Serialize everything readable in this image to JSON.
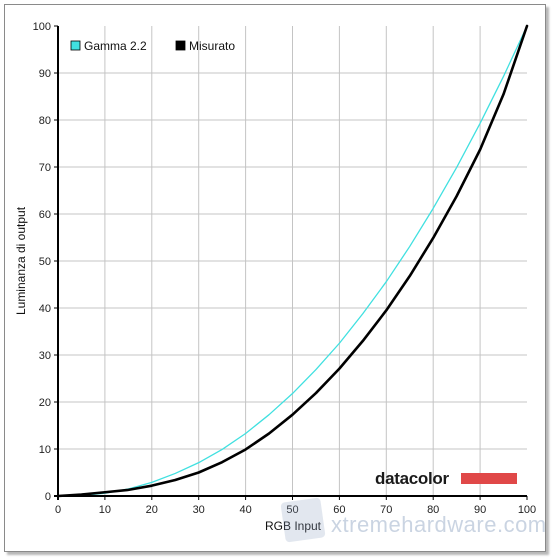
{
  "chart_data": {
    "type": "line",
    "xlabel": "RGB Input",
    "ylabel": "Luminanza di output",
    "xlim": [
      0,
      100
    ],
    "ylim": [
      0,
      100
    ],
    "x_ticks": [
      "0",
      "10",
      "20",
      "30",
      "40",
      "50",
      "60",
      "70",
      "80",
      "90",
      "100"
    ],
    "y_ticks": [
      "0",
      "10",
      "20",
      "30",
      "40",
      "50",
      "60",
      "70",
      "80",
      "90",
      "100"
    ],
    "grid": true,
    "legend_position": "top-left",
    "series": [
      {
        "name": "Gamma 2.2",
        "color": "#40e0e0",
        "x": [
          0,
          5,
          10,
          15,
          20,
          25,
          30,
          35,
          40,
          45,
          50,
          55,
          60,
          65,
          70,
          75,
          80,
          85,
          90,
          95,
          100
        ],
        "y": [
          0,
          0.1,
          0.6,
          1.5,
          2.9,
          4.8,
          7.1,
          9.9,
          13.3,
          17.3,
          21.8,
          26.9,
          32.5,
          38.8,
          45.6,
          53.1,
          61.2,
          69.9,
          79.3,
          89.3,
          100
        ]
      },
      {
        "name": "Misurato",
        "color": "#000000",
        "x": [
          0,
          5,
          10,
          15,
          20,
          25,
          30,
          35,
          40,
          45,
          50,
          55,
          60,
          65,
          70,
          75,
          80,
          85,
          90,
          95,
          100
        ],
        "y": [
          0,
          0.3,
          0.8,
          1.3,
          2.2,
          3.4,
          5.0,
          7.2,
          9.9,
          13.3,
          17.3,
          21.9,
          27.1,
          33.0,
          39.5,
          46.8,
          54.9,
          63.8,
          73.7,
          85.5,
          100
        ]
      }
    ]
  },
  "logo": {
    "text": "datacolor",
    "bar_color": "#e04848"
  },
  "watermark": {
    "text": "xtremehardware.com"
  }
}
